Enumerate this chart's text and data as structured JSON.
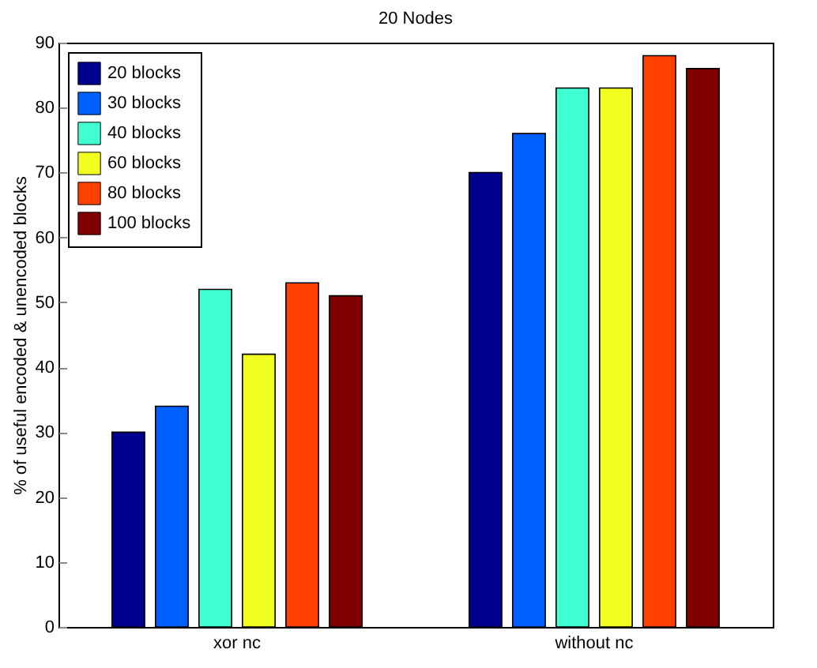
{
  "chart_data": {
    "type": "bar",
    "title": "20 Nodes",
    "ylabel": "% of useful encoded & unencoded blocks",
    "categories": [
      "xor nc",
      "without nc"
    ],
    "series": [
      {
        "name": "20 blocks",
        "color": "#00008f",
        "values": [
          30,
          70
        ]
      },
      {
        "name": "30 blocks",
        "color": "#0060ff",
        "values": [
          34,
          76
        ]
      },
      {
        "name": "40 blocks",
        "color": "#40ffd0",
        "values": [
          52,
          83
        ]
      },
      {
        "name": "60 blocks",
        "color": "#f0ff20",
        "values": [
          42,
          83
        ]
      },
      {
        "name": "80 blocks",
        "color": "#ff4000",
        "values": [
          53,
          88
        ]
      },
      {
        "name": "100 blocks",
        "color": "#800000",
        "values": [
          51,
          86
        ]
      }
    ],
    "ylim": [
      0,
      90
    ],
    "yticks": [
      0,
      10,
      20,
      30,
      40,
      50,
      60,
      70,
      80,
      90
    ],
    "grid": false,
    "legend": "top left"
  }
}
